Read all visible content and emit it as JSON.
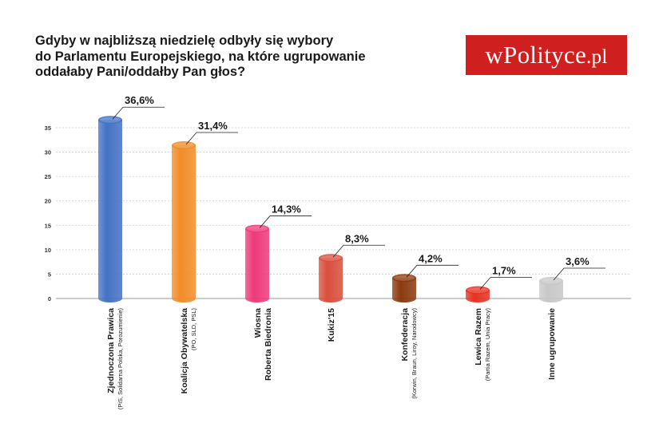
{
  "title_lines": [
    "Gdyby w najbliższą niedzielę odbyły się wybory",
    "do Parlamentu Europejskiego, na które ugrupowanie",
    "oddałaby Pani/oddałby Pan głos?"
  ],
  "logo": {
    "main": "wPolityce",
    "suffix": ".pl"
  },
  "colors": {
    "logo_bg": "#d01f1f"
  },
  "chart_data": {
    "type": "bar",
    "title": "Gdyby w najbliższą niedzielę odbyły się wybory do Parlamentu Europejskiego, na które ugrupowanie oddałaby Pani/oddałby Pan głos?",
    "ylim": [
      0,
      35
    ],
    "yticks": [
      "0",
      "5",
      "10",
      "15",
      "20",
      "25",
      "30",
      "35"
    ],
    "grid": true,
    "categories": [
      {
        "name": "Zjednoczona Prawica",
        "sub": "(PiS, Solidarna Polska, Porozumienie)",
        "value": 36.6,
        "label": "36,6%",
        "color": "#4472c4"
      },
      {
        "name": "Koalicja Obywatelska",
        "sub": "(PO, SLD, PSL)",
        "value": 31.4,
        "label": "31,4%",
        "color": "#f28c28"
      },
      {
        "name": "Wiosna",
        "sub": "Roberta Biedronia",
        "value": 14.3,
        "label": "14,3%",
        "color": "#ee3a7a"
      },
      {
        "name": "Kukiz'15",
        "sub": "",
        "value": 8.3,
        "label": "8,3%",
        "color": "#d94f3c"
      },
      {
        "name": "Konfederacja",
        "sub": "(Korwin, Braun, Liroy, Narodowcy)",
        "value": 4.2,
        "label": "4,2%",
        "color": "#8b3a0f"
      },
      {
        "name": "Lewica Razem",
        "sub": "(Partia Razem, Unia Pracy)",
        "value": 1.7,
        "label": "1,7%",
        "color": "#e53222"
      },
      {
        "name": "Inne ugrupowanie",
        "sub": "",
        "value": 3.6,
        "label": "3,6%",
        "color": "#c8c8c8"
      }
    ]
  }
}
